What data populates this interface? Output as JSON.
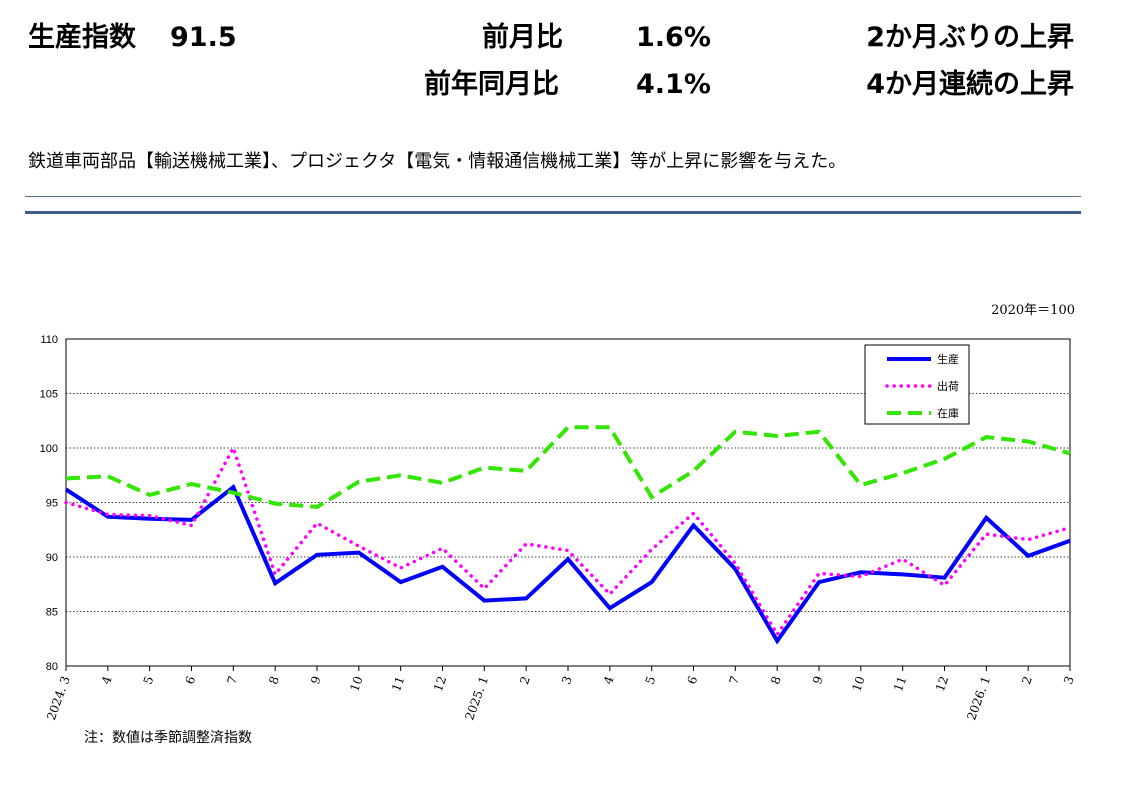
{
  "summary": {
    "index_label": "生産指数",
    "index_value": "91.5",
    "mom_label": "前月比",
    "mom_value": "1.6%",
    "mom_comment": "2か月ぶりの上昇",
    "yoy_label": "前年同月比",
    "yoy_value": "4.1%",
    "yoy_comment": "4か月連続の上昇"
  },
  "description": "鉄道車両部品【輸送機械工業】、プロジェクタ【電気・情報通信機械工業】等が上昇に影響を与えた。",
  "footnote": "注：数値は季節調整済指数",
  "colors": {
    "rule": "#3b5f8a"
  },
  "chart_data": {
    "type": "line",
    "unit_note": "2020年＝100",
    "categories": [
      "2024. 3",
      "4",
      "5",
      "6",
      "7",
      "8",
      "9",
      "10",
      "11",
      "12",
      "2025. 1",
      "2",
      "3",
      "4",
      "5",
      "6",
      "7",
      "8",
      "9",
      "10",
      "11",
      "12",
      "2026. 1",
      "2",
      "3"
    ],
    "ylim": [
      80,
      110
    ],
    "yticks": [
      80,
      85,
      90,
      95,
      100,
      105,
      110
    ],
    "grid": true,
    "legend_position": "top-right",
    "series": [
      {
        "name": "生産",
        "color": "#0000ff",
        "style": "solid",
        "values": [
          96.2,
          93.7,
          93.5,
          93.4,
          96.4,
          87.6,
          90.2,
          90.4,
          87.7,
          89.1,
          86.0,
          86.2,
          89.8,
          85.3,
          87.7,
          92.9,
          88.9,
          82.3,
          87.7,
          88.6,
          88.4,
          88.1,
          93.6,
          90.1,
          91.5
        ]
      },
      {
        "name": "出荷",
        "color": "#ff00ff",
        "style": "dotted",
        "values": [
          95.0,
          93.9,
          93.8,
          92.9,
          100.0,
          88.4,
          93.1,
          91.0,
          89.0,
          90.8,
          87.1,
          91.2,
          90.6,
          86.6,
          90.7,
          94.0,
          89.4,
          82.9,
          88.5,
          88.2,
          89.8,
          87.4,
          92.1,
          91.6,
          92.7
        ]
      },
      {
        "name": "在庫",
        "color": "#33e600",
        "style": "dashed",
        "values": [
          97.2,
          97.4,
          95.7,
          96.7,
          95.9,
          94.9,
          94.6,
          96.9,
          97.5,
          96.8,
          98.2,
          97.9,
          101.9,
          101.9,
          95.5,
          97.9,
          101.5,
          101.1,
          101.5,
          96.6,
          97.7,
          99.0,
          101.0,
          100.6,
          99.5
        ]
      }
    ]
  }
}
